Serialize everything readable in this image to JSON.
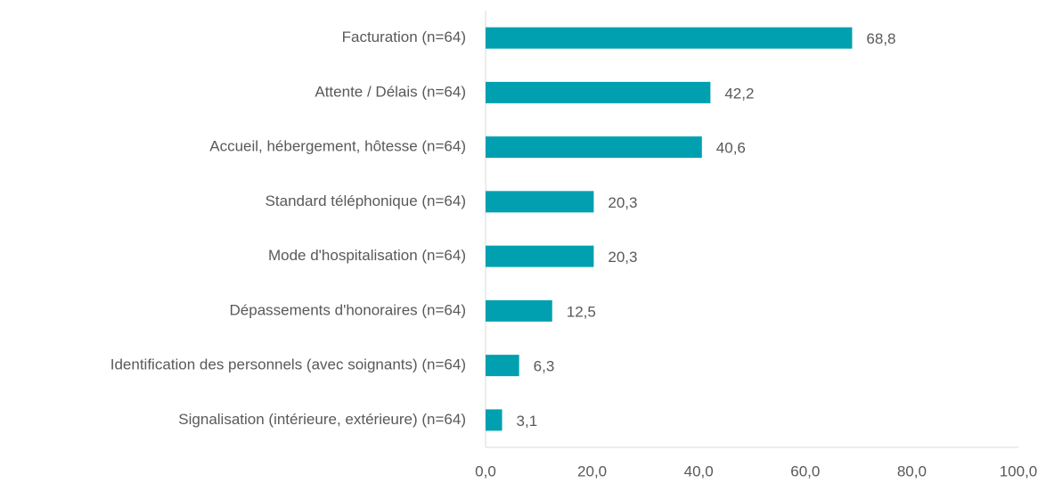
{
  "chart_data": {
    "type": "hbar",
    "categories": [
      "Facturation (n=64)",
      "Attente / Délais (n=64)",
      "Accueil, hébergement, hôtesse (n=64)",
      "Standard téléphonique (n=64)",
      "Mode d'hospitalisation (n=64)",
      "Dépassements d'honoraires (n=64)",
      "Identification des personnels (avec soignants) (n=64)",
      "Signalisation (intérieure, extérieure) (n=64)"
    ],
    "values": [
      68.8,
      42.2,
      40.6,
      20.3,
      20.3,
      12.5,
      6.3,
      3.1
    ],
    "value_labels": [
      "68,8",
      "42,2",
      "40,6",
      "20,3",
      "20,3",
      "12,5",
      "6,3",
      "3,1"
    ],
    "color": "#00a0b0",
    "xlim": [
      0,
      100
    ],
    "xticks": [
      {
        "value": 0,
        "label": "0,0"
      },
      {
        "value": 20,
        "label": "20,0"
      },
      {
        "value": 40,
        "label": "40,0"
      },
      {
        "value": 60,
        "label": "60,0"
      },
      {
        "value": 80,
        "label": "80,0"
      },
      {
        "value": 100,
        "label": "100,0"
      }
    ],
    "grid": false
  }
}
